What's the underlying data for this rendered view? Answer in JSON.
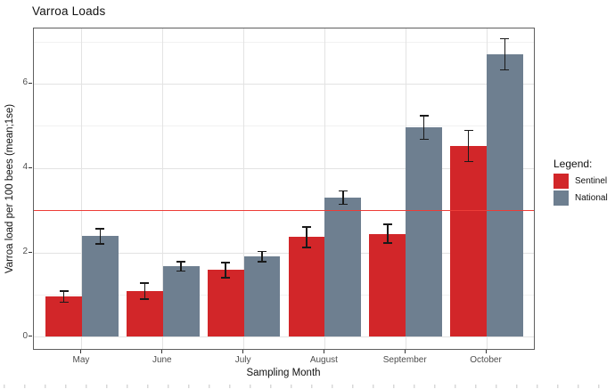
{
  "chart_data": {
    "type": "bar",
    "title": "Varroa Loads",
    "xlabel": "Sampling Month",
    "ylabel": "Varroa load per 100 bees (mean;1se)",
    "categories": [
      "May",
      "June",
      "July",
      "August",
      "September",
      "October"
    ],
    "series": [
      {
        "name": "Sentinel",
        "color": "#d22629",
        "values": [
          0.95,
          1.08,
          1.58,
          2.36,
          2.44,
          4.52
        ],
        "se": [
          0.13,
          0.19,
          0.18,
          0.24,
          0.22,
          0.37
        ]
      },
      {
        "name": "National",
        "color": "#6e7f90",
        "values": [
          2.38,
          1.67,
          1.9,
          3.3,
          4.96,
          6.69
        ],
        "se": [
          0.18,
          0.11,
          0.12,
          0.16,
          0.28,
          0.37
        ]
      }
    ],
    "error_bars": "mean ± 1 standard error, black caps",
    "ylim": [
      0,
      7.3
    ],
    "yticks": [
      0,
      2,
      4,
      6
    ],
    "yminor_gridlines": [
      1,
      3,
      5,
      7
    ],
    "reference_line": {
      "value": 3,
      "color": "#ed3c37"
    },
    "legend": {
      "title": "Legend:",
      "position": "right"
    },
    "grid": "major + minor horizontal, major vertical at categories",
    "panel_background": "#ffffff"
  }
}
